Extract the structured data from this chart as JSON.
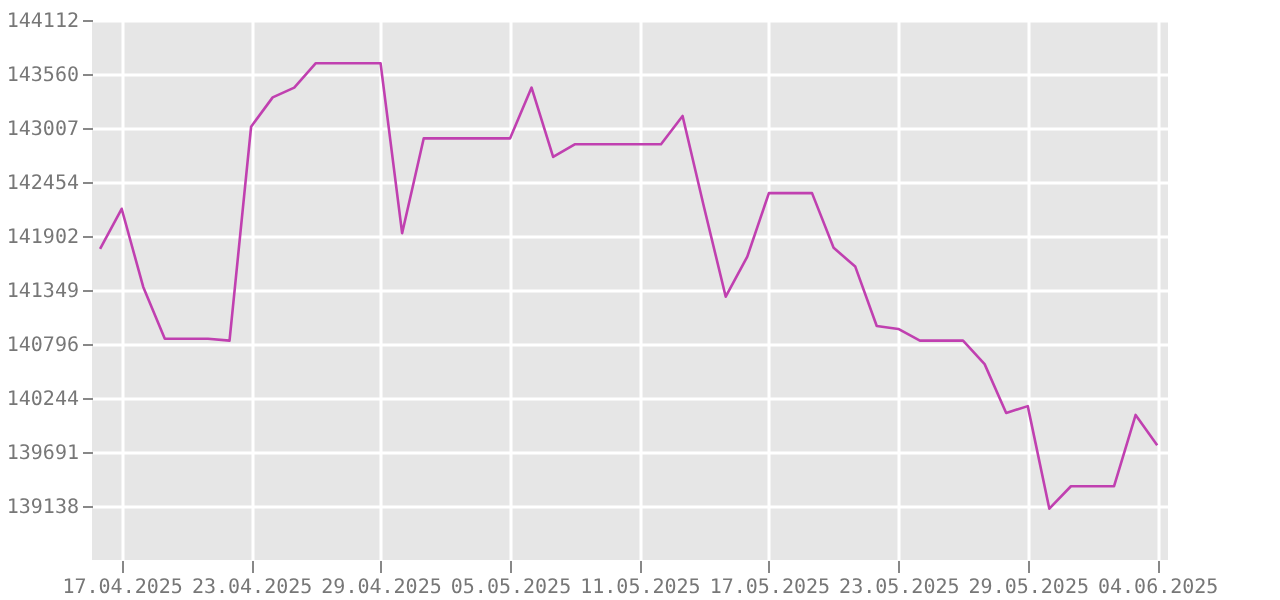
{
  "chart_data": {
    "type": "line",
    "x": [
      "2025-04-16",
      "2025-04-17",
      "2025-04-18",
      "2025-04-19",
      "2025-04-20",
      "2025-04-21",
      "2025-04-22",
      "2025-04-23",
      "2025-04-24",
      "2025-04-25",
      "2025-04-26",
      "2025-04-27",
      "2025-04-28",
      "2025-04-29",
      "2025-04-30",
      "2025-05-01",
      "2025-05-02",
      "2025-05-03",
      "2025-05-04",
      "2025-05-05",
      "2025-05-06",
      "2025-05-07",
      "2025-05-08",
      "2025-05-09",
      "2025-05-10",
      "2025-05-11",
      "2025-05-12",
      "2025-05-13",
      "2025-05-14",
      "2025-05-15",
      "2025-05-16",
      "2025-05-17",
      "2025-05-18",
      "2025-05-19",
      "2025-05-20",
      "2025-05-21",
      "2025-05-22",
      "2025-05-23",
      "2025-05-24",
      "2025-05-25",
      "2025-05-26",
      "2025-05-27",
      "2025-05-28",
      "2025-05-29",
      "2025-05-30",
      "2025-05-31",
      "2025-06-01",
      "2025-06-02",
      "2025-06-03",
      "2025-06-04"
    ],
    "series": [
      {
        "color": "#c040b0",
        "values": [
          141770,
          142180,
          141380,
          140850,
          140850,
          140850,
          140830,
          143020,
          143320,
          143420,
          143670,
          143670,
          143670,
          143670,
          141930,
          142900,
          142900,
          142900,
          142900,
          142900,
          143420,
          142710,
          142840,
          142840,
          142840,
          142840,
          142840,
          143130,
          142190,
          141280,
          141690,
          142340,
          142340,
          142340,
          141780,
          141590,
          140980,
          140950,
          140830,
          140830,
          140830,
          140590,
          140090,
          140160,
          139110,
          139340,
          139340,
          139340,
          140070,
          139760
        ]
      }
    ],
    "xlim": [
      "2025-04-15T15:00",
      "2025-06-04T12:00"
    ],
    "xticks": [
      {
        "value": "2025-04-17",
        "label": "17.04.2025"
      },
      {
        "value": "2025-04-23",
        "label": "23.04.2025"
      },
      {
        "value": "2025-04-29",
        "label": "29.04.2025"
      },
      {
        "value": "2025-05-05",
        "label": "05.05.2025"
      },
      {
        "value": "2025-05-11",
        "label": "11.05.2025"
      },
      {
        "value": "2025-05-17",
        "label": "17.05.2025"
      },
      {
        "value": "2025-05-23",
        "label": "23.05.2025"
      },
      {
        "value": "2025-05-29",
        "label": "29.05.2025"
      },
      {
        "value": "2025-06-04",
        "label": "04.06.2025"
      }
    ],
    "ylim": [
      138585,
      144112
    ],
    "yticks": [
      139138,
      139691,
      140244,
      140796,
      141349,
      141902,
      142454,
      143007,
      143560,
      144112
    ],
    "grid": true,
    "marker": "none",
    "line_style": "solid"
  }
}
